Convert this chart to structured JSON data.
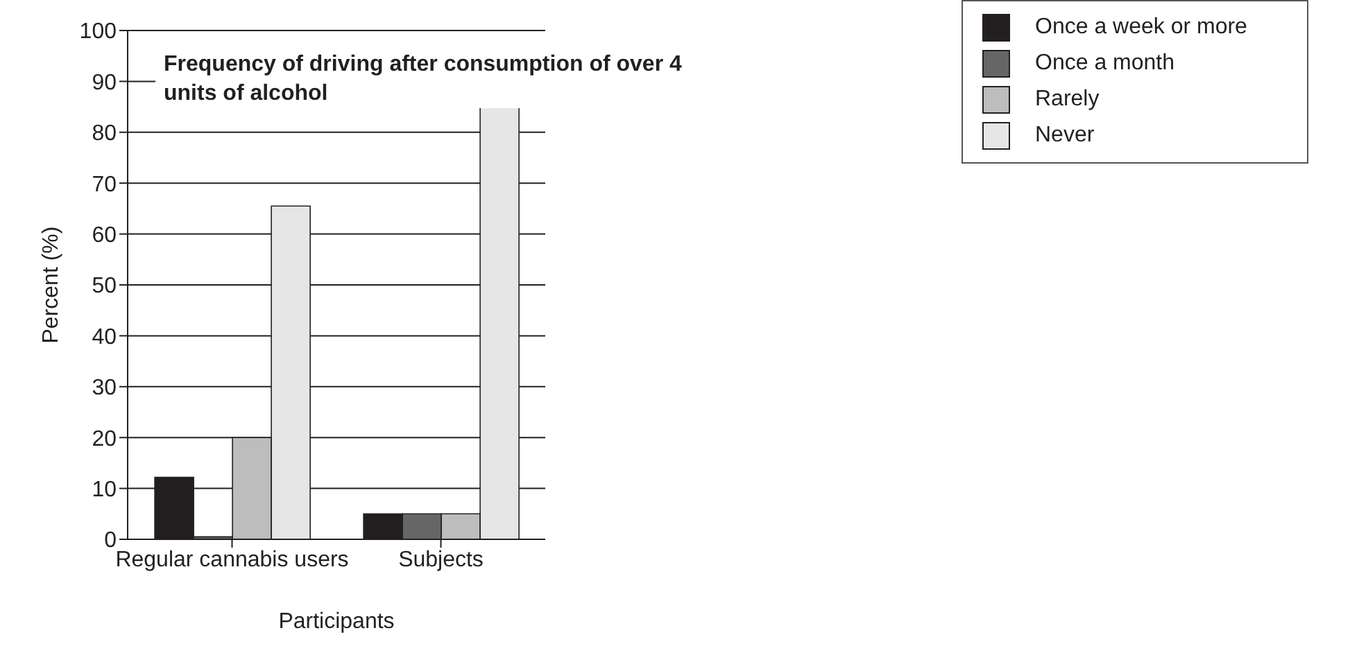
{
  "chart_data": {
    "type": "bar",
    "title": "Frequency of driving after consumption of over 4 units of alcohol",
    "xlabel": "Participants",
    "ylabel": "Percent (%)",
    "categories": [
      "Regular cannabis users",
      "Subjects"
    ],
    "series": [
      {
        "name": "Once a week or more",
        "color": "#231f20",
        "values": [
          12.2,
          5
        ]
      },
      {
        "name": "Once a month",
        "color": "#666666",
        "values": [
          0.5,
          5
        ]
      },
      {
        "name": "Rarely",
        "color": "#bdbdbd",
        "values": [
          20,
          5
        ]
      },
      {
        "name": "Never",
        "color": "#e6e6e6",
        "values": [
          65.5,
          85
        ]
      }
    ],
    "ylim": [
      0,
      100
    ],
    "yticks": [
      0,
      10,
      20,
      30,
      40,
      50,
      60,
      70,
      80,
      90,
      100
    ],
    "grid": "y",
    "legend": "right"
  }
}
